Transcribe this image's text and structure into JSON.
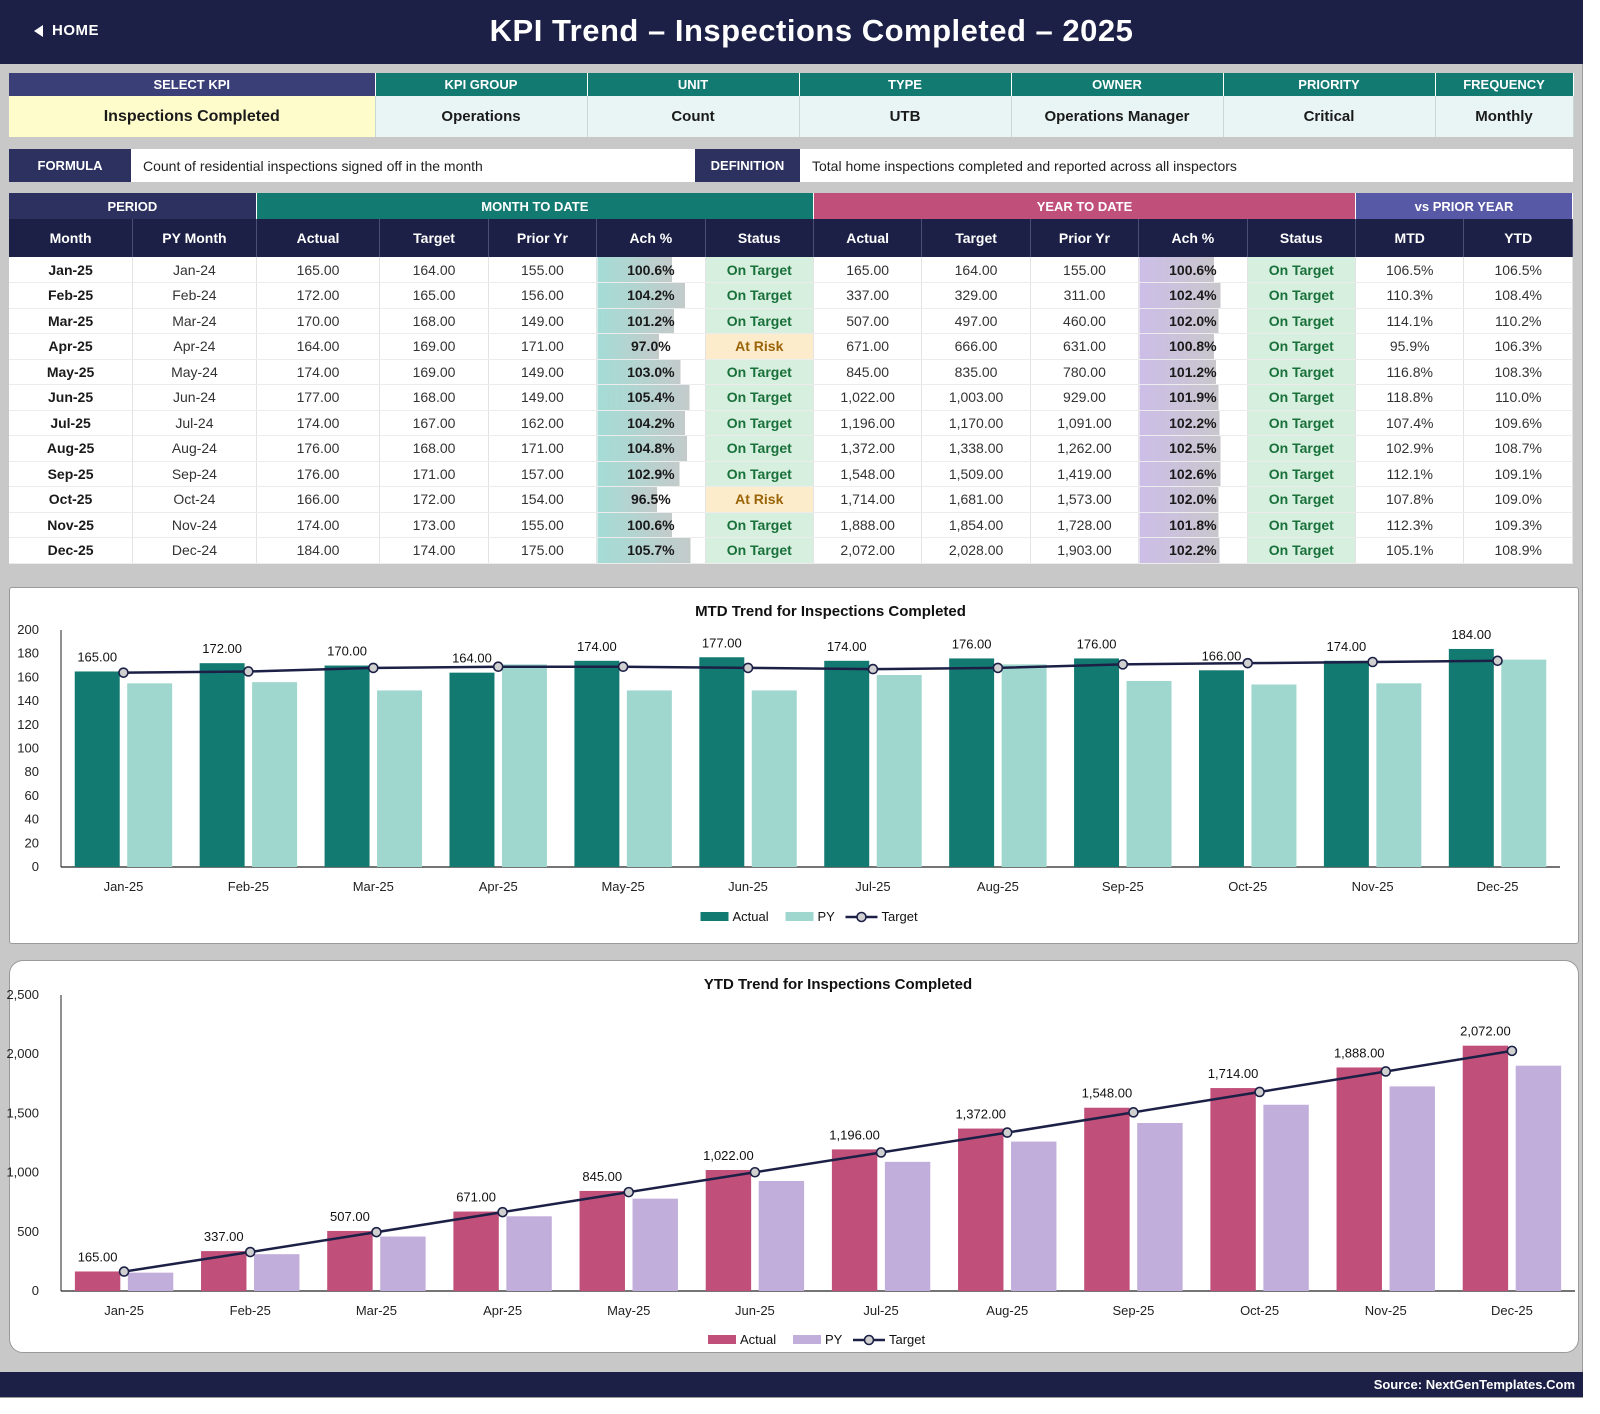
{
  "header": {
    "home_label": "HOME",
    "title": "KPI Trend   –   Inspections Completed   –   2025"
  },
  "meta": {
    "headers": [
      "SELECT KPI",
      "KPI GROUP",
      "UNIT",
      "TYPE",
      "OWNER",
      "PRIORITY",
      "FREQUENCY"
    ],
    "values": [
      "Inspections Completed",
      "Operations",
      "Count",
      "UTB",
      "Operations Manager",
      "Critical",
      "Monthly"
    ]
  },
  "formula": {
    "label": "FORMULA",
    "text": "Count of residential inspections signed off in the month",
    "def_label": "DEFINITION",
    "def_text": "Total home inspections completed and reported across all inspectors"
  },
  "table": {
    "groups": [
      "PERIOD",
      "MONTH TO DATE",
      "YEAR TO DATE",
      "vs PRIOR YEAR"
    ],
    "columns": [
      "Month",
      "PY Month",
      "Actual",
      "Target",
      "Prior Yr",
      "Ach %",
      "Status",
      "Actual",
      "Target",
      "Prior Yr",
      "Ach %",
      "Status",
      "MTD",
      "YTD"
    ],
    "rows": [
      [
        "Jan-25",
        "Jan-24",
        "165.00",
        "164.00",
        "155.00",
        "100.6%",
        "On Target",
        "165.00",
        "164.00",
        "155.00",
        "100.6%",
        "On Target",
        "106.5%",
        "106.5%"
      ],
      [
        "Feb-25",
        "Feb-24",
        "172.00",
        "165.00",
        "156.00",
        "104.2%",
        "On Target",
        "337.00",
        "329.00",
        "311.00",
        "102.4%",
        "On Target",
        "110.3%",
        "108.4%"
      ],
      [
        "Mar-25",
        "Mar-24",
        "170.00",
        "168.00",
        "149.00",
        "101.2%",
        "On Target",
        "507.00",
        "497.00",
        "460.00",
        "102.0%",
        "On Target",
        "114.1%",
        "110.2%"
      ],
      [
        "Apr-25",
        "Apr-24",
        "164.00",
        "169.00",
        "171.00",
        "97.0%",
        "At Risk",
        "671.00",
        "666.00",
        "631.00",
        "100.8%",
        "On Target",
        "95.9%",
        "106.3%"
      ],
      [
        "May-25",
        "May-24",
        "174.00",
        "169.00",
        "149.00",
        "103.0%",
        "On Target",
        "845.00",
        "835.00",
        "780.00",
        "101.2%",
        "On Target",
        "116.8%",
        "108.3%"
      ],
      [
        "Jun-25",
        "Jun-24",
        "177.00",
        "168.00",
        "149.00",
        "105.4%",
        "On Target",
        "1,022.00",
        "1,003.00",
        "929.00",
        "101.9%",
        "On Target",
        "118.8%",
        "110.0%"
      ],
      [
        "Jul-25",
        "Jul-24",
        "174.00",
        "167.00",
        "162.00",
        "104.2%",
        "On Target",
        "1,196.00",
        "1,170.00",
        "1,091.00",
        "102.2%",
        "On Target",
        "107.4%",
        "109.6%"
      ],
      [
        "Aug-25",
        "Aug-24",
        "176.00",
        "168.00",
        "171.00",
        "104.8%",
        "On Target",
        "1,372.00",
        "1,338.00",
        "1,262.00",
        "102.5%",
        "On Target",
        "102.9%",
        "108.7%"
      ],
      [
        "Sep-25",
        "Sep-24",
        "176.00",
        "171.00",
        "157.00",
        "102.9%",
        "On Target",
        "1,548.00",
        "1,509.00",
        "1,419.00",
        "102.6%",
        "On Target",
        "112.1%",
        "109.1%"
      ],
      [
        "Oct-25",
        "Oct-24",
        "166.00",
        "172.00",
        "154.00",
        "96.5%",
        "At Risk",
        "1,714.00",
        "1,681.00",
        "1,573.00",
        "102.0%",
        "On Target",
        "107.8%",
        "109.0%"
      ],
      [
        "Nov-25",
        "Nov-24",
        "174.00",
        "173.00",
        "155.00",
        "100.6%",
        "On Target",
        "1,888.00",
        "1,854.00",
        "1,728.00",
        "101.8%",
        "On Target",
        "112.3%",
        "109.3%"
      ],
      [
        "Dec-25",
        "Dec-24",
        "184.00",
        "174.00",
        "175.00",
        "105.7%",
        "On Target",
        "2,072.00",
        "2,028.00",
        "1,903.00",
        "102.2%",
        "On Target",
        "105.1%",
        "108.9%"
      ]
    ]
  },
  "colors": {
    "navy": "#1c2046",
    "mtd_actual": "#137a72",
    "mtd_py": "#9fd6cd",
    "ytd_actual": "#c0507a",
    "ytd_py": "#c2aedb",
    "target_line": "#1c2046",
    "on_target_bg": "#d7efde",
    "at_risk_bg": "#fdeccb"
  },
  "chart_data": [
    {
      "type": "bar",
      "title": "MTD Trend for Inspections Completed",
      "categories": [
        "Jan-25",
        "Feb-25",
        "Mar-25",
        "Apr-25",
        "May-25",
        "Jun-25",
        "Jul-25",
        "Aug-25",
        "Sep-25",
        "Oct-25",
        "Nov-25",
        "Dec-25"
      ],
      "series": [
        {
          "name": "Actual",
          "kind": "bar",
          "values": [
            165,
            172,
            170,
            164,
            174,
            177,
            174,
            176,
            176,
            166,
            174,
            184
          ],
          "data_labels": [
            "165.00",
            "172.00",
            "170.00",
            "164.00",
            "174.00",
            "177.00",
            "174.00",
            "176.00",
            "176.00",
            "166.00",
            "174.00",
            "184.00"
          ]
        },
        {
          "name": "PY",
          "kind": "bar",
          "values": [
            155,
            156,
            149,
            171,
            149,
            149,
            162,
            171,
            157,
            154,
            155,
            175
          ]
        },
        {
          "name": "Target",
          "kind": "line",
          "values": [
            164,
            165,
            168,
            169,
            169,
            168,
            167,
            168,
            171,
            172,
            173,
            174
          ]
        }
      ],
      "ylim": [
        0,
        200
      ],
      "yticks": [
        "0",
        "20",
        "40",
        "60",
        "80",
        "100",
        "120",
        "140",
        "160",
        "180",
        "200"
      ],
      "legend": "bottom"
    },
    {
      "type": "bar",
      "title": "YTD Trend for Inspections Completed",
      "categories": [
        "Jan-25",
        "Feb-25",
        "Mar-25",
        "Apr-25",
        "May-25",
        "Jun-25",
        "Jul-25",
        "Aug-25",
        "Sep-25",
        "Oct-25",
        "Nov-25",
        "Dec-25"
      ],
      "series": [
        {
          "name": "Actual",
          "kind": "bar",
          "values": [
            165,
            337,
            507,
            671,
            845,
            1022,
            1196,
            1372,
            1548,
            1714,
            1888,
            2072
          ],
          "data_labels": [
            "165.00",
            "337.00",
            "507.00",
            "671.00",
            "845.00",
            "1,022.00",
            "1,196.00",
            "1,372.00",
            "1,548.00",
            "1,714.00",
            "1,888.00",
            "2,072.00"
          ]
        },
        {
          "name": "PY",
          "kind": "bar",
          "values": [
            155,
            311,
            460,
            631,
            780,
            929,
            1091,
            1262,
            1419,
            1573,
            1728,
            1903
          ]
        },
        {
          "name": "Target",
          "kind": "line",
          "values": [
            164,
            329,
            497,
            666,
            835,
            1003,
            1170,
            1338,
            1509,
            1681,
            1854,
            2028
          ]
        }
      ],
      "ylim": [
        0,
        2500
      ],
      "yticks": [
        "0",
        "500",
        "1,000",
        "1,500",
        "2,000",
        "2,500"
      ],
      "legend": "bottom"
    }
  ],
  "footer": {
    "source": "Source: NextGenTemplates.Com"
  }
}
